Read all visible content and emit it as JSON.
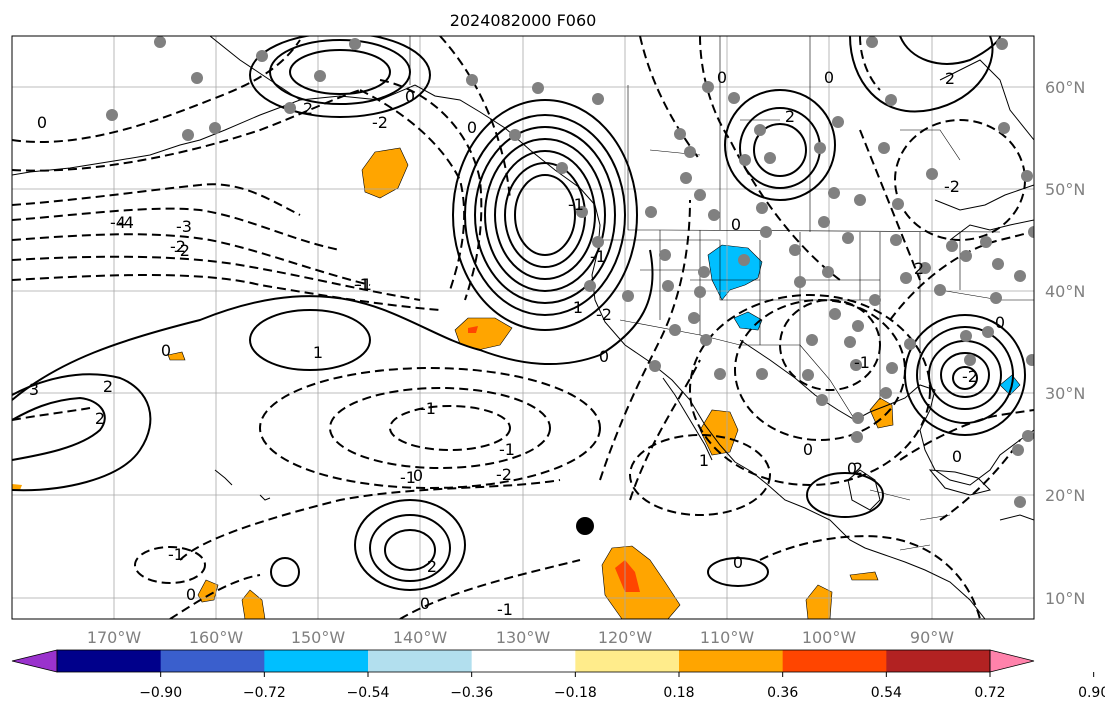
{
  "title": "2024082000 F060",
  "lon_labels": [
    "170°W",
    "160°W",
    "150°W",
    "140°W",
    "130°W",
    "120°W",
    "110°W",
    "100°W",
    "90°W"
  ],
  "lat_labels": [
    "60°N",
    "50°N",
    "40°N",
    "30°N",
    "20°N",
    "10°N"
  ],
  "colorbar": {
    "ticks": [
      "−0.90",
      "−0.72",
      "−0.54",
      "−0.36",
      "−0.18",
      "0.18",
      "0.36",
      "0.54",
      "0.72",
      "0.90"
    ],
    "colors": [
      "#9a32cd",
      "#00008b",
      "#3a5fcd",
      "#00bfff",
      "#b2dfee",
      "#ffffff",
      "#ffec8b",
      "#ffa500",
      "#ff4500",
      "#b22222",
      "#ff82ab"
    ]
  },
  "contour_labels": [
    "2",
    "0",
    "-2",
    "0",
    "-4",
    "-3",
    "-2",
    "-1",
    "0",
    "1",
    "2",
    "3",
    "0",
    "-1",
    "1",
    "-2",
    "0",
    "-1",
    "-2",
    "-1",
    "-1",
    "2",
    "1",
    "0",
    "0",
    "2",
    "0",
    "0",
    "-1",
    "0",
    "-2",
    "2",
    "-1",
    "0",
    "0",
    "2",
    "-2",
    "0",
    "2",
    "0",
    "-1",
    "0",
    "-4",
    "-2",
    "-1",
    "0",
    "-1",
    "2"
  ],
  "colors": {
    "contour": "#000000",
    "grid": "#a8a8a8",
    "station": "#808080",
    "storm_marker": "#000000"
  }
}
